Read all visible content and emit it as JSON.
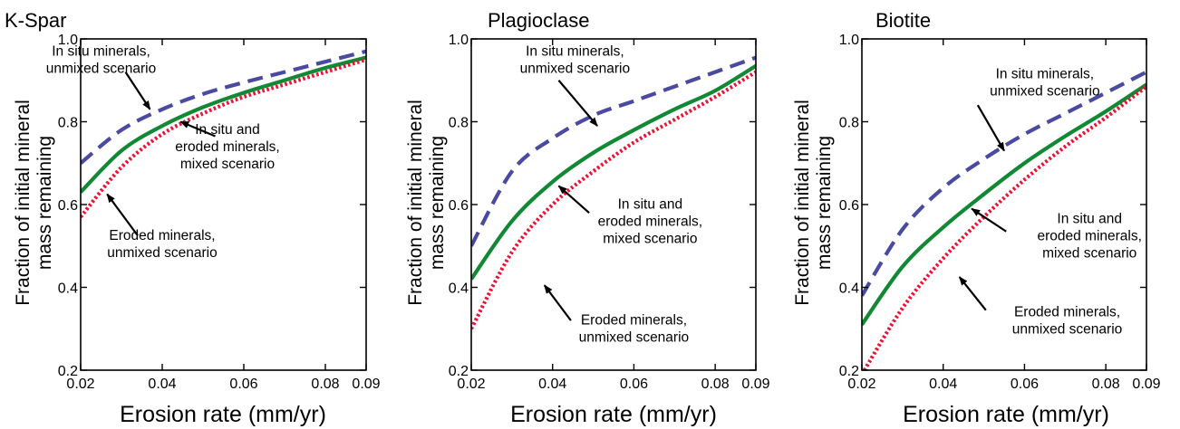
{
  "chart_data": [
    {
      "type": "line",
      "title": "K-Spar",
      "xlabel": "Erosion rate (mm/yr)",
      "ylabel": [
        "Fraction of initial mineral",
        "mass remaining"
      ],
      "xlim": [
        0.02,
        0.09
      ],
      "ylim": [
        0.2,
        1.0
      ],
      "xticks": [
        "0.02",
        "0.04",
        "0.06",
        "0.08",
        "0.09"
      ],
      "xtick_values": [
        0.02,
        0.04,
        0.06,
        0.08,
        0.09
      ],
      "yticks": [
        "0.2",
        "0.4",
        "0.6",
        "0.8",
        "1.0"
      ],
      "ytick_values": [
        0.2,
        0.4,
        0.6,
        0.8,
        1.0
      ],
      "x": [
        0.02,
        0.03,
        0.04,
        0.05,
        0.06,
        0.07,
        0.08,
        0.09
      ],
      "series": [
        {
          "label": "In situ minerals, unmixed scenario",
          "color": "#4a4aa0",
          "dash": "dashed",
          "values": [
            0.7,
            0.78,
            0.83,
            0.867,
            0.895,
            0.92,
            0.945,
            0.97
          ]
        },
        {
          "label": "In situ and eroded minerals, mixed scenario",
          "color": "#118833",
          "dash": "solid",
          "values": [
            0.63,
            0.73,
            0.79,
            0.835,
            0.87,
            0.9,
            0.93,
            0.955
          ]
        },
        {
          "label": "Eroded minerals, unmixed scenario",
          "color": "#ee1133",
          "dash": "dotted",
          "values": [
            0.57,
            0.69,
            0.77,
            0.82,
            0.86,
            0.89,
            0.92,
            0.95
          ]
        }
      ],
      "annotations": [
        {
          "lines": [
            "In situ minerals,",
            "unmixed scenario"
          ],
          "tx": 0.025,
          "ty": 0.96,
          "ax": 0.031,
          "ay": 0.92,
          "px": 0.037,
          "py": 0.83
        },
        {
          "lines": [
            "In situ and",
            "eroded minerals,",
            "mixed scenario"
          ],
          "tx": 0.056,
          "ty": 0.77,
          "ax": 0.053,
          "ay": 0.765,
          "px": 0.0445,
          "py": 0.8
        },
        {
          "lines": [
            "Eroded minerals,",
            "unmixed scenario"
          ],
          "tx": 0.04,
          "ty": 0.515,
          "ax": 0.034,
          "ay": 0.525,
          "px": 0.0265,
          "py": 0.625
        }
      ]
    },
    {
      "type": "line",
      "title": "Plagioclase",
      "xlabel": "Erosion rate (mm/yr)",
      "ylabel": [
        "Fraction of initial mineral",
        "mass remaining"
      ],
      "xlim": [
        0.02,
        0.09
      ],
      "ylim": [
        0.2,
        1.0
      ],
      "xticks": [
        "0.02",
        "0.04",
        "0.06",
        "0.08",
        "0.09"
      ],
      "xtick_values": [
        0.02,
        0.04,
        0.06,
        0.08,
        0.09
      ],
      "yticks": [
        "0.2",
        "0.4",
        "0.6",
        "0.8",
        "1.0"
      ],
      "ytick_values": [
        0.2,
        0.4,
        0.6,
        0.8,
        1.0
      ],
      "x": [
        0.02,
        0.03,
        0.04,
        0.05,
        0.06,
        0.07,
        0.08,
        0.09
      ],
      "series": [
        {
          "label": "In situ minerals, unmixed scenario",
          "color": "#4a4aa0",
          "dash": "dashed",
          "values": [
            0.5,
            0.68,
            0.76,
            0.815,
            0.85,
            0.885,
            0.92,
            0.955
          ]
        },
        {
          "label": "In situ and eroded minerals, mixed scenario",
          "color": "#118833",
          "dash": "solid",
          "values": [
            0.42,
            0.56,
            0.655,
            0.725,
            0.78,
            0.83,
            0.875,
            0.935
          ]
        },
        {
          "label": "Eroded minerals, unmixed scenario",
          "color": "#ee1133",
          "dash": "dotted",
          "values": [
            0.3,
            0.485,
            0.6,
            0.68,
            0.75,
            0.805,
            0.86,
            0.92
          ]
        }
      ],
      "annotations": [
        {
          "lines": [
            "In situ minerals,",
            "unmixed scenario"
          ],
          "tx": 0.0455,
          "ty": 0.96,
          "ax": 0.0415,
          "ay": 0.9,
          "px": 0.051,
          "py": 0.79
        },
        {
          "lines": [
            "In situ and",
            "eroded minerals,",
            "mixed scenario"
          ],
          "tx": 0.064,
          "ty": 0.59,
          "ax": 0.049,
          "ay": 0.58,
          "px": 0.0415,
          "py": 0.645
        },
        {
          "lines": [
            "Eroded minerals,",
            "unmixed scenario"
          ],
          "tx": 0.06,
          "ty": 0.31,
          "ax": 0.0445,
          "ay": 0.32,
          "px": 0.038,
          "py": 0.405
        }
      ]
    },
    {
      "type": "line",
      "title": "Biotite",
      "xlabel": "Erosion rate (mm/yr)",
      "ylabel": [
        "Fraction of initial mineral",
        "mass remaining"
      ],
      "xlim": [
        0.02,
        0.09
      ],
      "ylim": [
        0.2,
        1.0
      ],
      "xticks": [
        "0.02",
        "0.04",
        "0.06",
        "0.08",
        "0.09"
      ],
      "xtick_values": [
        0.02,
        0.04,
        0.06,
        0.08,
        0.09
      ],
      "yticks": [
        "0.2",
        "0.4",
        "0.6",
        "0.8",
        "1.0"
      ],
      "ytick_values": [
        0.2,
        0.4,
        0.6,
        0.8,
        1.0
      ],
      "x": [
        0.02,
        0.03,
        0.04,
        0.05,
        0.06,
        0.07,
        0.08,
        0.09
      ],
      "series": [
        {
          "label": "In situ minerals, unmixed scenario",
          "color": "#4a4aa0",
          "dash": "dashed",
          "values": [
            0.38,
            0.54,
            0.64,
            0.71,
            0.77,
            0.82,
            0.87,
            0.92
          ]
        },
        {
          "label": "In situ and eroded minerals, mixed scenario",
          "color": "#118833",
          "dash": "solid",
          "values": [
            0.31,
            0.45,
            0.545,
            0.625,
            0.7,
            0.765,
            0.825,
            0.89
          ]
        },
        {
          "label": "Eroded minerals, unmixed scenario",
          "color": "#ee1133",
          "dash": "dotted",
          "values": [
            0.19,
            0.35,
            0.47,
            0.57,
            0.66,
            0.74,
            0.81,
            0.885
          ]
        }
      ],
      "annotations": [
        {
          "lines": [
            "In situ minerals,",
            "unmixed scenario"
          ],
          "tx": 0.065,
          "ty": 0.905,
          "ax": 0.0485,
          "ay": 0.84,
          "px": 0.055,
          "py": 0.73
        },
        {
          "lines": [
            "In situ and",
            "eroded minerals,",
            "mixed scenario"
          ],
          "tx": 0.076,
          "ty": 0.555,
          "ax": 0.0555,
          "ay": 0.535,
          "px": 0.047,
          "py": 0.59
        },
        {
          "lines": [
            "Eroded minerals,",
            "unmixed scenario"
          ],
          "tx": 0.0705,
          "ty": 0.33,
          "ax": 0.0505,
          "ay": 0.345,
          "px": 0.044,
          "py": 0.425
        }
      ]
    }
  ]
}
